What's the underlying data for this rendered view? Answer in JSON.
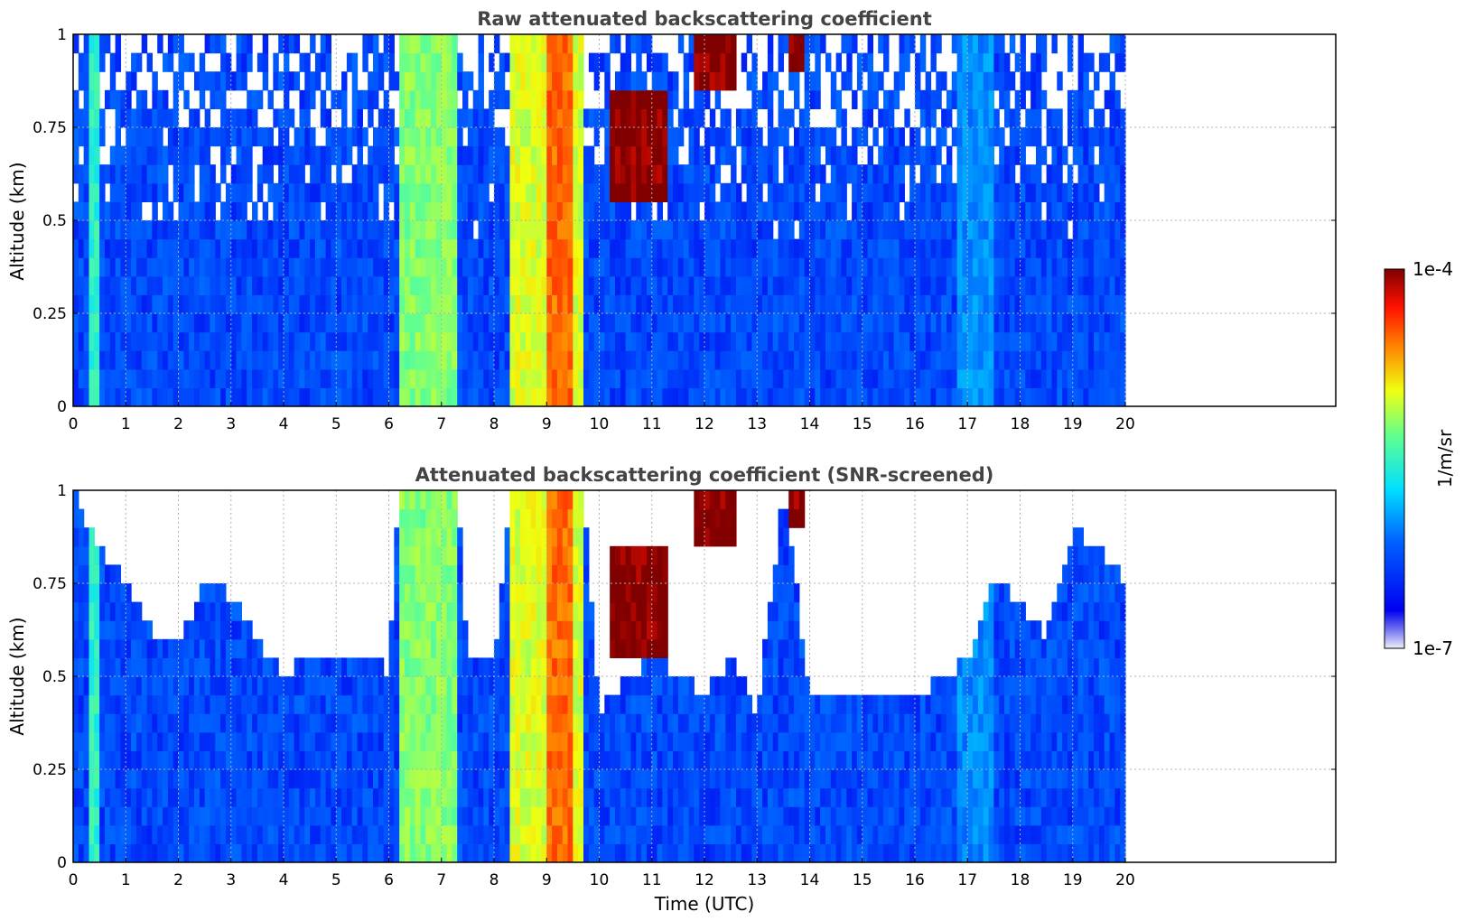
{
  "chart_data": [
    {
      "type": "heatmap",
      "title": "Raw attenuated backscattering coefficient",
      "xlabel": "",
      "ylabel": "Altitude (km)",
      "xlim": [
        0,
        24
      ],
      "ylim": [
        0,
        1
      ],
      "xticks": [
        "0",
        "1",
        "2",
        "3",
        "4",
        "5",
        "6",
        "7",
        "8",
        "9",
        "10",
        "11",
        "12",
        "13",
        "14",
        "15",
        "16",
        "17",
        "18",
        "19",
        "20"
      ],
      "yticks": [
        "0",
        "0.25",
        "0.5",
        "0.75",
        "1"
      ],
      "grid": true,
      "data_time_range": [
        0,
        20
      ],
      "features": [
        {
          "t0": 0.3,
          "t1": 0.45,
          "level": "high",
          "value": 3e-06
        },
        {
          "t0": 6.2,
          "t1": 7.3,
          "level": "high",
          "value": 6e-06
        },
        {
          "t0": 8.3,
          "t1": 9.7,
          "level": "high",
          "value": 1e-05
        },
        {
          "t0": 9.0,
          "t1": 9.5,
          "level": "very-high",
          "value": 3e-05
        },
        {
          "t0": 10.2,
          "t1": 11.3,
          "alt0": 0.55,
          "alt1": 0.85,
          "level": "max",
          "value": 0.0001
        },
        {
          "t0": 11.8,
          "t1": 12.6,
          "alt0": 0.85,
          "alt1": 1.0,
          "level": "max",
          "value": 0.0001
        },
        {
          "t0": 13.6,
          "t1": 13.9,
          "alt0": 0.9,
          "alt1": 1.0,
          "level": "max",
          "value": 0.0001
        },
        {
          "t0": 16.8,
          "t1": 17.5,
          "level": "medium",
          "value": 1e-06
        }
      ],
      "background_value": 5e-07
    },
    {
      "type": "heatmap",
      "title": "Attenuated backscattering coefficient (SNR-screened)",
      "xlabel": "Time (UTC)",
      "ylabel": "Altitude (km)",
      "xlim": [
        0,
        24
      ],
      "ylim": [
        0,
        1
      ],
      "xticks": [
        "0",
        "1",
        "2",
        "3",
        "4",
        "5",
        "6",
        "7",
        "8",
        "9",
        "10",
        "11",
        "12",
        "13",
        "14",
        "15",
        "16",
        "17",
        "18",
        "19",
        "20"
      ],
      "yticks": [
        "0",
        "0.25",
        "0.5",
        "0.75",
        "1"
      ],
      "grid": true,
      "data_time_range": [
        0,
        20
      ],
      "screened_top_km": [
        [
          0.0,
          1.0
        ],
        [
          0.5,
          0.85
        ],
        [
          1.0,
          0.75
        ],
        [
          1.5,
          0.62
        ],
        [
          2.0,
          0.58
        ],
        [
          2.5,
          0.75
        ],
        [
          3.0,
          0.72
        ],
        [
          3.5,
          0.6
        ],
        [
          4.0,
          0.5
        ],
        [
          4.5,
          0.55
        ],
        [
          5.0,
          0.55
        ],
        [
          5.5,
          0.55
        ],
        [
          6.0,
          0.52
        ],
        [
          6.2,
          1.0
        ],
        [
          7.3,
          1.0
        ],
        [
          7.5,
          0.55
        ],
        [
          8.0,
          0.55
        ],
        [
          8.3,
          1.0
        ],
        [
          9.7,
          1.0
        ],
        [
          10.0,
          0.4
        ],
        [
          10.5,
          0.5
        ],
        [
          11.0,
          0.55
        ],
        [
          11.5,
          0.5
        ],
        [
          12.0,
          0.45
        ],
        [
          12.5,
          0.55
        ],
        [
          13.0,
          0.4
        ],
        [
          13.5,
          1.0
        ],
        [
          14.0,
          0.45
        ],
        [
          14.5,
          0.45
        ],
        [
          15.0,
          0.45
        ],
        [
          15.5,
          0.45
        ],
        [
          16.0,
          0.45
        ],
        [
          16.5,
          0.5
        ],
        [
          17.0,
          0.55
        ],
        [
          17.5,
          0.75
        ],
        [
          18.0,
          0.7
        ],
        [
          18.5,
          0.6
        ],
        [
          19.0,
          0.9
        ],
        [
          19.5,
          0.85
        ],
        [
          20.0,
          0.75
        ]
      ]
    }
  ],
  "colorbar": {
    "label": "1/m/sr",
    "min_label": "1e-7",
    "max_label": "1e-4",
    "min": 1e-07,
    "max": 0.0001,
    "scale": "log",
    "colormap": "jet"
  }
}
